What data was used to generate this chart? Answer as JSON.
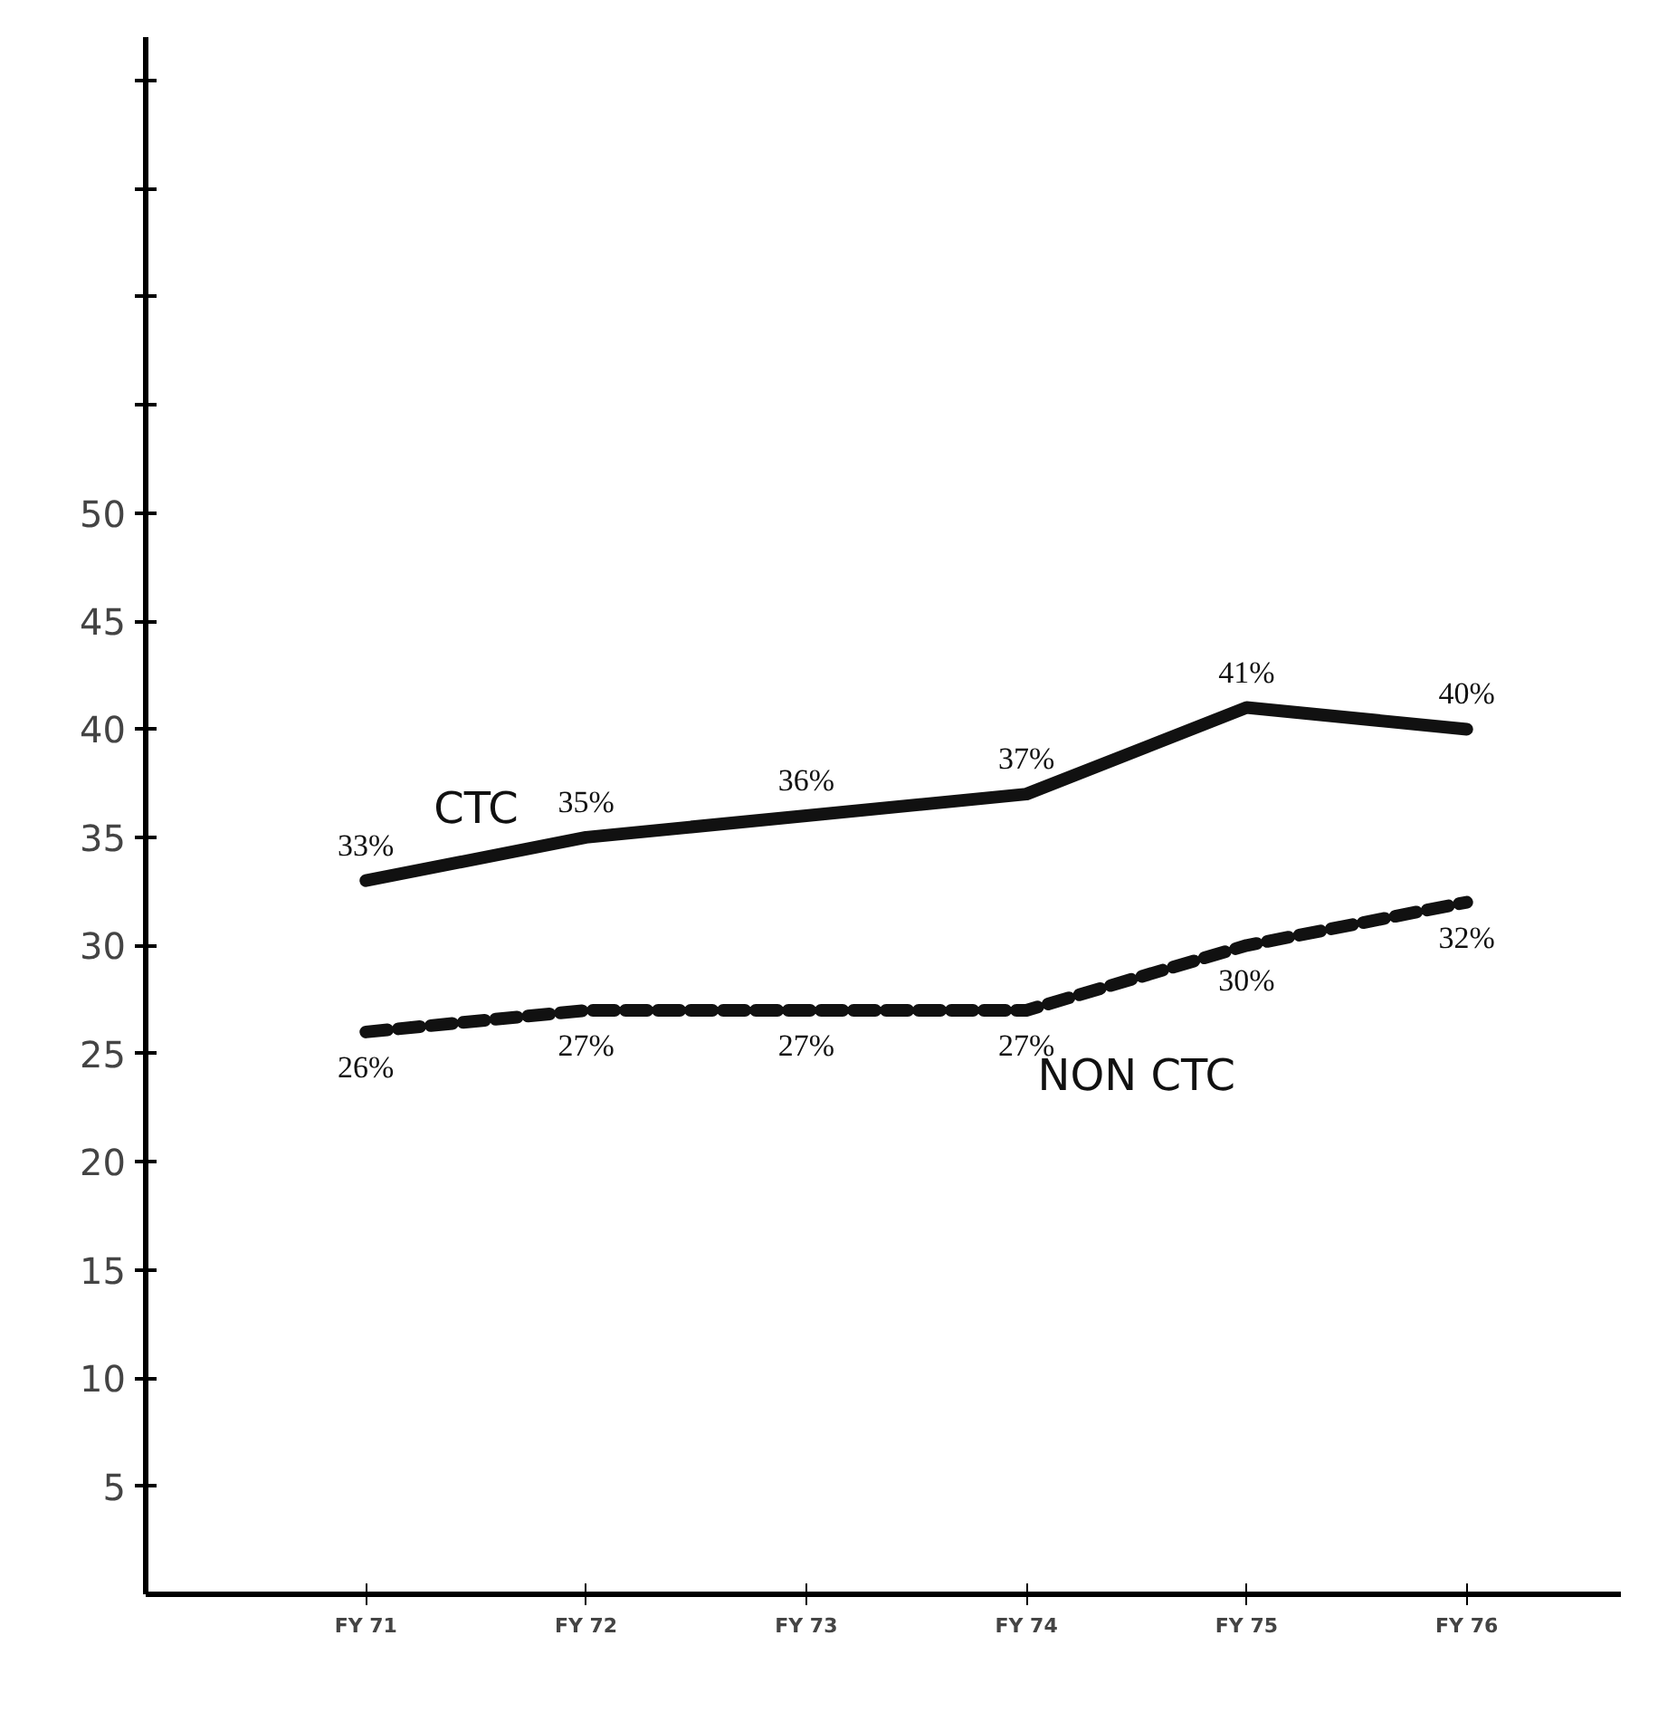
{
  "chart_data": {
    "type": "line",
    "categories": [
      "FY 71",
      "FY 72",
      "FY 73",
      "FY 74",
      "FY 75",
      "FY 76"
    ],
    "series": [
      {
        "name": "CTC",
        "color": "#111111",
        "line_style": "solid",
        "values": [
          33,
          35,
          36,
          37,
          41,
          40
        ],
        "value_labels": [
          "33%",
          "35%",
          "36%",
          "37%",
          "41%",
          "40%"
        ]
      },
      {
        "name": "NON CTC",
        "color": "#111111",
        "line_style": "dashed",
        "values": [
          26,
          27,
          27,
          27,
          30,
          32
        ],
        "value_labels": [
          "26%",
          "27%",
          "27%",
          "27%",
          "30%",
          "32%"
        ]
      }
    ],
    "ylim": [
      0,
      72
    ],
    "yticks": [
      5,
      10,
      15,
      20,
      25,
      30,
      35,
      40,
      45,
      50,
      {
        "value": 55,
        "label": null
      },
      {
        "value": 60,
        "label": null
      },
      {
        "value": 65,
        "label": null
      },
      {
        "value": 70,
        "label": null
      }
    ],
    "grid": false,
    "marker": "none"
  }
}
